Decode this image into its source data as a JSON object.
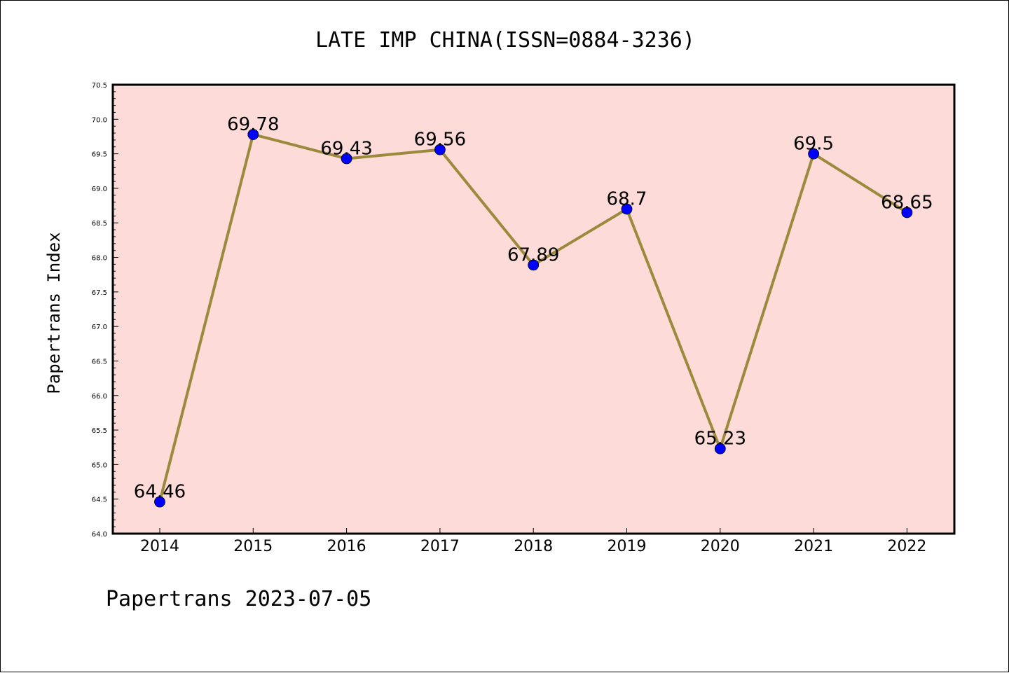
{
  "chart_data": {
    "type": "line",
    "title": "LATE IMP CHINA(ISSN=0884-3236)",
    "ylabel": "Papertrans Index",
    "xlabel": "",
    "footer": "Papertrans 2023-07-05",
    "categories": [
      "2014",
      "2015",
      "2016",
      "2017",
      "2018",
      "2019",
      "2020",
      "2021",
      "2022"
    ],
    "series": [
      {
        "values": [
          64.46,
          69.78,
          69.43,
          69.56,
          67.89,
          68.7,
          65.23,
          69.5,
          68.65
        ],
        "labels": [
          "64.46",
          "69.78",
          "69.43",
          "69.56",
          "67.89",
          "68.7",
          "65.23",
          "69.5",
          "68.65"
        ]
      }
    ],
    "ylim": [
      64.0,
      70.5
    ],
    "yticks": [
      "64.0",
      "64.5",
      "65.0",
      "65.5",
      "66.0",
      "66.5",
      "67.0",
      "67.5",
      "68.0",
      "68.5",
      "69.0",
      "69.5",
      "70.0",
      "70.5"
    ],
    "grid": false,
    "legend": "none",
    "colors": {
      "plot_background": "#fddbd8",
      "line": "#9b8a3c",
      "marker": "#0000ff",
      "axes": "#000000"
    }
  }
}
